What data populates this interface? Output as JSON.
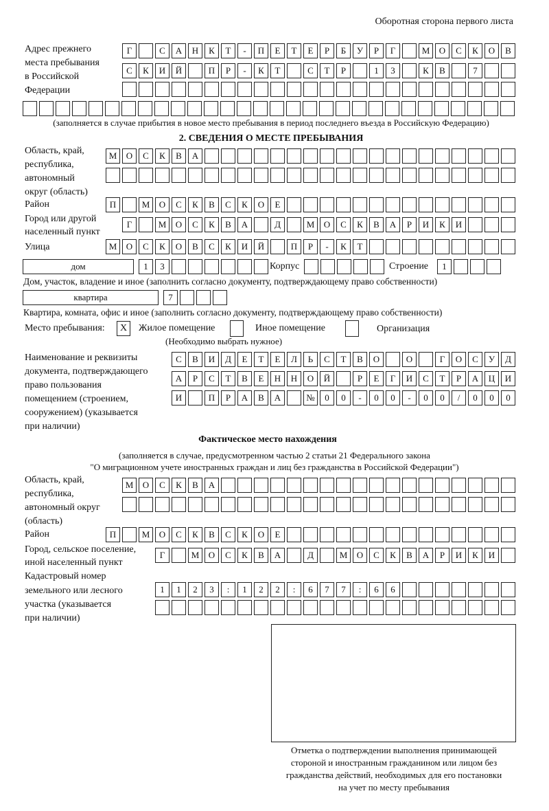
{
  "header": {
    "side_note": "Оборотная сторона первого листа"
  },
  "previous_address": {
    "label": [
      "Адрес прежнего",
      "места пребывания",
      "в Российской",
      "Федерации"
    ],
    "rows": [
      [
        "Г",
        "",
        "С",
        "А",
        "Н",
        "К",
        "Т",
        "-",
        "П",
        "Е",
        "Т",
        "Е",
        "Р",
        "Б",
        "У",
        "Р",
        "Г",
        "",
        "М",
        "О",
        "С",
        "К",
        "О",
        "В"
      ],
      [
        "С",
        "К",
        "И",
        "Й",
        "",
        "П",
        "Р",
        "-",
        "К",
        "Т",
        "",
        "С",
        "Т",
        "Р",
        "",
        "1",
        "3",
        "",
        "К",
        "В",
        "",
        "7",
        "",
        ""
      ],
      [
        "",
        "",
        "",
        "",
        "",
        "",
        "",
        "",
        "",
        "",
        "",
        "",
        "",
        "",
        "",
        "",
        "",
        "",
        "",
        "",
        "",
        "",
        "",
        ""
      ],
      [
        "",
        "",
        "",
        "",
        "",
        "",
        "",
        "",
        "",
        "",
        "",
        "",
        "",
        "",
        "",
        "",
        "",
        "",
        "",
        "",
        "",
        "",
        "",
        "",
        "",
        "",
        "",
        "",
        "",
        ""
      ]
    ],
    "note": "(заполняется в случае прибытия в новое место пребывания в период последнего въезда в Российскую Федерацию)"
  },
  "section2": {
    "title": "2. СВЕДЕНИЯ О МЕСТЕ ПРЕБЫВАНИЯ",
    "region_label": [
      "Область, край,",
      "республика,",
      "автономный",
      "округ (область)"
    ],
    "region_rows": [
      [
        "М",
        "О",
        "С",
        "К",
        "В",
        "А",
        "",
        "",
        "",
        "",
        "",
        "",
        "",
        "",
        "",
        "",
        "",
        "",
        "",
        "",
        "",
        "",
        "",
        "",
        ""
      ],
      [
        "",
        "",
        "",
        "",
        "",
        "",
        "",
        "",
        "",
        "",
        "",
        "",
        "",
        "",
        "",
        "",
        "",
        "",
        "",
        "",
        "",
        "",
        "",
        "",
        ""
      ]
    ],
    "district_label": "Район",
    "district_row": [
      "П",
      "",
      "М",
      "О",
      "С",
      "К",
      "В",
      "С",
      "К",
      "О",
      "Е",
      "",
      "",
      "",
      "",
      "",
      "",
      "",
      "",
      "",
      "",
      "",
      "",
      "",
      ""
    ],
    "city_label": [
      "Город или другой",
      "населенный пункт"
    ],
    "city_row": [
      "Г",
      "",
      "М",
      "О",
      "С",
      "К",
      "В",
      "А",
      "",
      "Д",
      "",
      "М",
      "О",
      "С",
      "К",
      "В",
      "А",
      "Р",
      "И",
      "К",
      "И",
      "",
      "",
      ""
    ],
    "street_label": "Улица",
    "street_row": [
      "М",
      "О",
      "С",
      "К",
      "О",
      "В",
      "С",
      "К",
      "И",
      "Й",
      "",
      "П",
      "Р",
      "-",
      "К",
      "Т",
      "",
      "",
      "",
      "",
      "",
      "",
      "",
      "",
      ""
    ],
    "house": {
      "type_value": "дом",
      "number": [
        "1",
        "3",
        "",
        "",
        "",
        "",
        "",
        ""
      ],
      "korpus_label": "Корпус",
      "korpus": [
        "",
        "",
        "",
        "",
        ""
      ],
      "building_label": "Строение",
      "building": [
        "1",
        "",
        "",
        ""
      ],
      "caption": "Дом, участок, владение и иное (заполнить согласно документу, подтверждающему право собственности)"
    },
    "apartment": {
      "type_value": "квартира",
      "number": [
        "7",
        "",
        "",
        ""
      ],
      "caption": "Квартира, комната, офис и иное (заполнить согласно документу, подтверждающему право собственности)"
    },
    "place_type": {
      "label": "Место пребывания:",
      "options": [
        {
          "mark": "X",
          "label": "Жилое помещение"
        },
        {
          "mark": "",
          "label": "Иное помещение"
        },
        {
          "mark": "",
          "label": "Организация"
        }
      ],
      "hint": "(Необходимо выбрать нужное)"
    },
    "document_label": [
      "Наименование и реквизиты",
      "документа, подтверждающего",
      "право пользования",
      "помещением (строением,",
      "сооружением) (указывается",
      "при наличии)"
    ],
    "document_rows": [
      [
        "С",
        "В",
        "И",
        "Д",
        "Е",
        "Т",
        "Е",
        "Л",
        "Ь",
        "С",
        "Т",
        "В",
        "О",
        "",
        "О",
        "",
        "Г",
        "О",
        "С",
        "У",
        "Д"
      ],
      [
        "А",
        "Р",
        "С",
        "Т",
        "В",
        "Е",
        "Н",
        "Н",
        "О",
        "Й",
        "",
        "Р",
        "Е",
        "Г",
        "И",
        "С",
        "Т",
        "Р",
        "А",
        "Ц",
        "И"
      ],
      [
        "И",
        "",
        "П",
        "Р",
        "А",
        "В",
        "А",
        "",
        "№",
        "0",
        "0",
        "-",
        "0",
        "0",
        "-",
        "0",
        "0",
        "/",
        "0",
        "0",
        "0"
      ]
    ]
  },
  "actual_location": {
    "title": "Фактическое место нахождения",
    "subtitle": [
      "(заполняется в случае, предусмотренном частью 2 статьи 21 Федерального закона",
      "\"О миграционном учете иностранных граждан и лиц без гражданства в Российской Федерации\")"
    ],
    "region_label": [
      "Область, край,",
      "республика,",
      "автономный округ",
      "(область)"
    ],
    "region_rows": [
      [
        "М",
        "О",
        "С",
        "К",
        "В",
        "А",
        "",
        "",
        "",
        "",
        "",
        "",
        "",
        "",
        "",
        "",
        "",
        "",
        "",
        "",
        "",
        "",
        "",
        ""
      ],
      [
        "",
        "",
        "",
        "",
        "",
        "",
        "",
        "",
        "",
        "",
        "",
        "",
        "",
        "",
        "",
        "",
        "",
        "",
        "",
        "",
        "",
        "",
        "",
        ""
      ]
    ],
    "district_label": "Район",
    "district_row": [
      "П",
      "",
      "М",
      "О",
      "С",
      "К",
      "В",
      "С",
      "К",
      "О",
      "Е",
      "",
      "",
      "",
      "",
      "",
      "",
      "",
      "",
      "",
      "",
      "",
      "",
      "",
      ""
    ],
    "city_label": [
      "Город, сельское поселение,",
      "иной населенный пункт"
    ],
    "city_row": [
      "Г",
      "",
      "М",
      "О",
      "С",
      "К",
      "В",
      "А",
      "",
      "Д",
      "",
      "М",
      "О",
      "С",
      "К",
      "В",
      "А",
      "Р",
      "И",
      "К",
      "И",
      ""
    ],
    "cadastral_label": [
      "Кадастровый номер",
      "земельного или лесного",
      "участка (указывается",
      "при наличии)"
    ],
    "cadastral_rows": [
      [
        "1",
        "1",
        "2",
        "3",
        ":",
        "1",
        "2",
        "2",
        ":",
        "6",
        "7",
        "7",
        ":",
        "6",
        "6",
        "",
        "",
        "",
        "",
        "",
        "",
        ""
      ],
      [
        "",
        "",
        "",
        "",
        "",
        "",
        "",
        "",
        "",
        "",
        "",
        "",
        "",
        "",
        "",
        "",
        "",
        "",
        "",
        "",
        "",
        ""
      ]
    ]
  },
  "confirmation": {
    "caption": [
      "Отметка о подтверждении выполнения принимающей",
      "стороной и иностранным гражданином или лицом без",
      "гражданства действий, необходимых для его постановки",
      "на учет по месту пребывания"
    ]
  }
}
